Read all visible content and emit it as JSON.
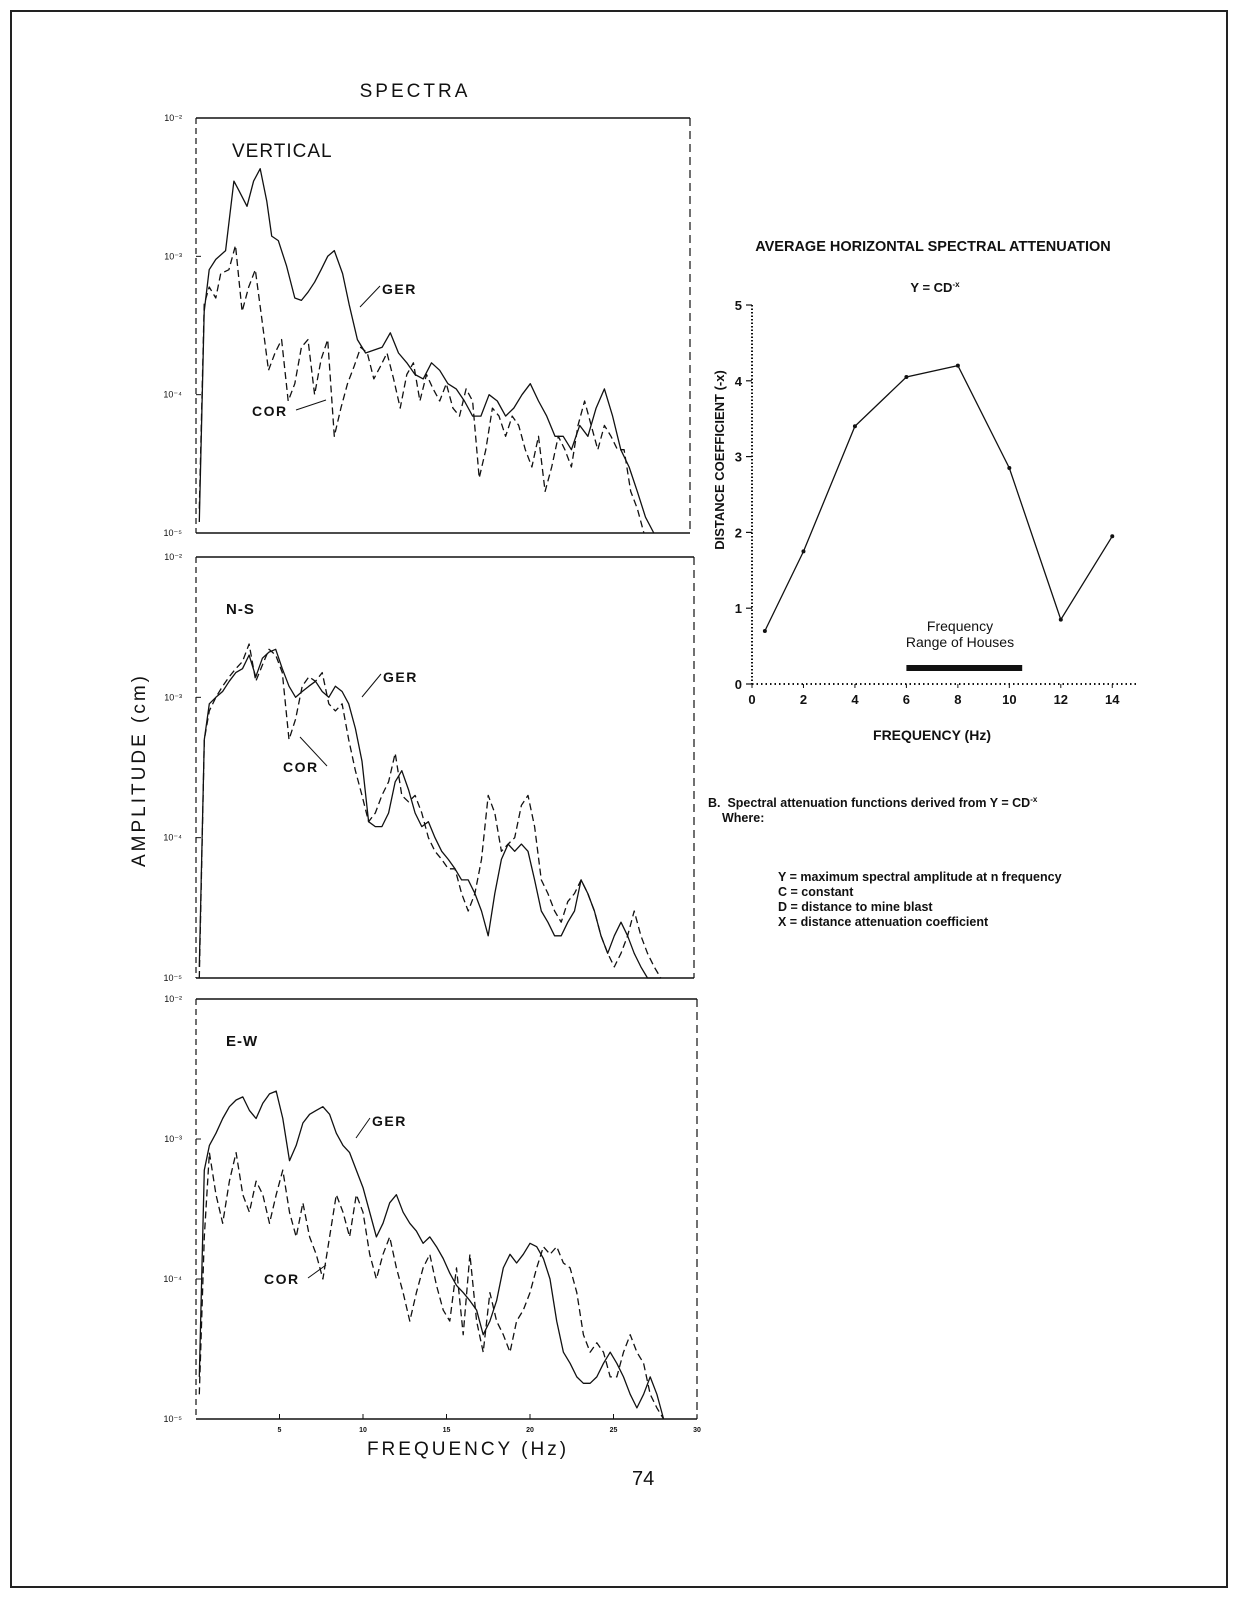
{
  "page": {
    "number": "74"
  },
  "left_figure": {
    "title": "SPECTRA",
    "y_axis_label": "AMPLITUDE (cm)",
    "x_axis_label": "FREQUENCY (Hz)"
  },
  "right_figure": {
    "title": "AVERAGE HORIZONTAL SPECTRAL ATTENUATION",
    "formula": "Y = CD",
    "formula_exp": "-x",
    "range_label_line1": "Frequency",
    "range_label_line2": "Range of Houses",
    "caption_prefix": "B.",
    "caption_text": "Spectral attenuation functions derived from Y = CD",
    "caption_exp": "-x",
    "caption_where": "Where:",
    "definitions": [
      "Y = maximum spectral amplitude at n frequency",
      "C = constant",
      "D = distance to mine blast",
      "X = distance attenuation coefficient"
    ]
  },
  "chart_data": [
    {
      "type": "line",
      "name": "VERTICAL",
      "log_y": true,
      "ylim": [
        1e-05,
        0.01
      ],
      "xlim": [
        0,
        30
      ],
      "ytick_labels": [
        "10⁻²",
        "10⁻³",
        "10⁻⁴",
        "10⁻⁵"
      ],
      "series": [
        {
          "name": "GER",
          "style": "solid",
          "x": [
            0.2,
            0.5,
            0.8,
            1.2,
            1.8,
            2.3,
            2.6,
            3.1,
            3.5,
            3.9,
            4.3,
            4.6,
            5.0,
            5.5,
            6.0,
            6.4,
            6.8,
            7.2,
            7.6,
            8.0,
            8.4,
            8.9,
            9.3,
            9.8,
            10.3,
            10.8,
            11.3,
            11.8,
            12.3,
            12.8,
            13.3,
            13.8,
            14.3,
            14.8,
            15.3,
            15.8,
            16.3,
            16.8,
            17.3,
            17.8,
            18.3,
            18.8,
            19.3,
            19.8,
            20.3,
            20.8,
            21.3,
            21.8,
            22.3,
            22.8,
            23.3,
            23.8,
            24.3,
            24.8,
            25.3,
            25.8,
            26.3,
            26.8,
            27.3,
            27.8
          ],
          "y": [
            1.2e-05,
            0.0004,
            0.0008,
            0.00095,
            0.0011,
            0.0035,
            0.003,
            0.0023,
            0.0035,
            0.0043,
            0.0025,
            0.0014,
            0.0013,
            0.00085,
            0.0005,
            0.00048,
            0.00055,
            0.00065,
            0.0008,
            0.001,
            0.0011,
            0.00075,
            0.00045,
            0.00025,
            0.0002,
            0.00021,
            0.00022,
            0.00028,
            0.0002,
            0.00017,
            0.00014,
            0.00013,
            0.00017,
            0.00015,
            0.00012,
            0.00011,
            9e-05,
            7e-05,
            7e-05,
            0.0001,
            9e-05,
            7e-05,
            8e-05,
            0.0001,
            0.00012,
            9e-05,
            7e-05,
            5e-05,
            5e-05,
            4e-05,
            6e-05,
            5e-05,
            8e-05,
            0.00011,
            7e-05,
            4e-05,
            3e-05,
            2e-05,
            1.3e-05,
            1e-05
          ]
        },
        {
          "name": "COR",
          "style": "dashed",
          "x": [
            0.2,
            0.5,
            0.8,
            1.2,
            1.5,
            2.0,
            2.4,
            2.8,
            3.2,
            3.6,
            4.0,
            4.4,
            4.8,
            5.2,
            5.6,
            6.0,
            6.4,
            6.8,
            7.2,
            7.6,
            8.0,
            8.4,
            8.8,
            9.2,
            9.6,
            10.0,
            10.4,
            10.8,
            11.2,
            11.6,
            12.0,
            12.4,
            12.8,
            13.2,
            13.6,
            14.0,
            14.4,
            14.8,
            15.2,
            15.6,
            16.0,
            16.4,
            16.8,
            17.2,
            17.6,
            18.0,
            18.4,
            18.8,
            19.2,
            19.6,
            20.0,
            20.4,
            20.8,
            21.2,
            21.6,
            22.0,
            22.4,
            22.8,
            23.2,
            23.6,
            24.0,
            24.4,
            24.8,
            25.2,
            25.6,
            26.0,
            26.4,
            26.8,
            27.2
          ],
          "y": [
            1.5e-05,
            0.00045,
            0.0006,
            0.0005,
            0.00075,
            0.0008,
            0.0012,
            0.0004,
            0.0006,
            0.0008,
            0.00035,
            0.00015,
            0.0002,
            0.00025,
            9e-05,
            0.00012,
            0.00022,
            0.00025,
            0.0001,
            0.00018,
            0.00025,
            5e-05,
            8e-05,
            0.00012,
            0.00016,
            0.00022,
            0.0002,
            0.00013,
            0.00016,
            0.0002,
            0.00013,
            8e-05,
            0.00014,
            0.00017,
            9e-05,
            0.00014,
            0.00011,
            9e-05,
            0.00012,
            8e-05,
            7e-05,
            0.00011,
            9e-05,
            2.5e-05,
            4e-05,
            8e-05,
            7e-05,
            5e-05,
            7e-05,
            6e-05,
            4e-05,
            3e-05,
            5e-05,
            2e-05,
            3e-05,
            5e-05,
            4e-05,
            3e-05,
            6e-05,
            9e-05,
            6e-05,
            4e-05,
            6e-05,
            5e-05,
            4e-05,
            4e-05,
            2e-05,
            1.5e-05,
            1e-05
          ]
        }
      ]
    },
    {
      "type": "line",
      "name": "N-S",
      "log_y": true,
      "ylim": [
        1e-05,
        0.01
      ],
      "xlim": [
        0,
        30
      ],
      "ytick_labels": [
        "10⁻²",
        "10⁻³",
        "10⁻⁴",
        "10⁻⁵"
      ],
      "series": [
        {
          "name": "GER",
          "style": "solid",
          "x": [
            0.2,
            0.5,
            0.8,
            1.2,
            1.6,
            2.0,
            2.4,
            2.8,
            3.2,
            3.6,
            4.0,
            4.4,
            4.8,
            5.2,
            5.6,
            6.0,
            6.4,
            6.8,
            7.2,
            7.6,
            8.0,
            8.4,
            8.8,
            9.2,
            9.6,
            10.0,
            10.4,
            10.8,
            11.2,
            11.6,
            12.0,
            12.4,
            12.8,
            13.2,
            13.6,
            14.0,
            14.4,
            14.8,
            15.2,
            15.6,
            16.0,
            16.4,
            16.8,
            17.2,
            17.6,
            18.0,
            18.4,
            18.8,
            19.2,
            19.6,
            20.0,
            20.4,
            20.8,
            21.2,
            21.6,
            22.0,
            22.4,
            22.8,
            23.2,
            23.6,
            24.0,
            24.4,
            24.8,
            25.2,
            25.6,
            26.0,
            26.4,
            26.8,
            27.2,
            27.6,
            28.0
          ],
          "y": [
            1.2e-05,
            0.0005,
            0.0009,
            0.001,
            0.0011,
            0.0013,
            0.0015,
            0.0016,
            0.002,
            0.0014,
            0.0019,
            0.0021,
            0.0022,
            0.0016,
            0.0012,
            0.001,
            0.0011,
            0.0012,
            0.0013,
            0.0011,
            0.001,
            0.0012,
            0.0011,
            0.0009,
            0.0006,
            0.00035,
            0.00013,
            0.00012,
            0.00012,
            0.00015,
            0.00025,
            0.0003,
            0.00022,
            0.00015,
            0.00012,
            0.00013,
            0.0001,
            8e-05,
            7e-05,
            6e-05,
            5e-05,
            5e-05,
            4e-05,
            3e-05,
            2e-05,
            4e-05,
            7e-05,
            9e-05,
            8e-05,
            9e-05,
            8e-05,
            5e-05,
            3e-05,
            2.5e-05,
            2e-05,
            2e-05,
            2.5e-05,
            3e-05,
            5e-05,
            4e-05,
            3e-05,
            2e-05,
            1.5e-05,
            2e-05,
            2.5e-05,
            2e-05,
            1.5e-05,
            1.2e-05,
            1e-05,
            1e-05,
            1e-05
          ]
        },
        {
          "name": "COR",
          "style": "dashed",
          "x": [
            0.2,
            0.5,
            0.8,
            1.2,
            1.6,
            2.0,
            2.4,
            2.8,
            3.2,
            3.6,
            4.0,
            4.4,
            4.8,
            5.2,
            5.6,
            6.0,
            6.4,
            6.8,
            7.2,
            7.6,
            8.0,
            8.4,
            8.8,
            9.2,
            9.6,
            10.0,
            10.4,
            10.8,
            11.2,
            11.6,
            12.0,
            12.4,
            12.8,
            13.2,
            13.6,
            14.0,
            14.4,
            14.8,
            15.2,
            15.6,
            16.0,
            16.4,
            16.8,
            17.2,
            17.6,
            18.0,
            18.4,
            18.8,
            19.2,
            19.6,
            20.0,
            20.4,
            20.8,
            21.2,
            21.6,
            22.0,
            22.4,
            22.8,
            23.2,
            23.6,
            24.0,
            24.4,
            24.8,
            25.2,
            25.6,
            26.0,
            26.4,
            26.8,
            27.2,
            27.6,
            28.0
          ],
          "y": [
            1e-05,
            0.0005,
            0.0008,
            0.001,
            0.0012,
            0.0014,
            0.0016,
            0.0018,
            0.0024,
            0.0013,
            0.0017,
            0.0022,
            0.002,
            0.0015,
            0.0005,
            0.0007,
            0.0012,
            0.0014,
            0.0013,
            0.0015,
            0.0009,
            0.0008,
            0.0009,
            0.0005,
            0.0003,
            0.0002,
            0.00013,
            0.00015,
            0.0002,
            0.00025,
            0.0004,
            0.0002,
            0.00018,
            0.0002,
            0.00015,
            0.0001,
            8e-05,
            7e-05,
            6e-05,
            6e-05,
            4e-05,
            3e-05,
            4e-05,
            7e-05,
            0.0002,
            0.00015,
            8e-05,
            9e-05,
            0.0001,
            0.00017,
            0.0002,
            0.00012,
            5e-05,
            4e-05,
            3e-05,
            2.5e-05,
            3.5e-05,
            4e-05,
            5e-05,
            4e-05,
            3e-05,
            2e-05,
            1.5e-05,
            1.2e-05,
            1.5e-05,
            2e-05,
            3e-05,
            2e-05,
            1.5e-05,
            1.2e-05,
            1e-05
          ]
        }
      ]
    },
    {
      "type": "line",
      "name": "E-W",
      "log_y": true,
      "ylim": [
        1e-05,
        0.01
      ],
      "xlim": [
        0,
        30
      ],
      "x_ticks": [
        5,
        10,
        15,
        20,
        25,
        30
      ],
      "ytick_labels": [
        "10⁻²",
        "10⁻³",
        "10⁻⁴",
        "10⁻⁵"
      ],
      "series": [
        {
          "name": "GER",
          "style": "solid",
          "x": [
            0.2,
            0.5,
            0.8,
            1.2,
            1.6,
            2.0,
            2.4,
            2.8,
            3.2,
            3.6,
            4.0,
            4.4,
            4.8,
            5.2,
            5.6,
            6.0,
            6.4,
            6.8,
            7.2,
            7.6,
            8.0,
            8.4,
            8.8,
            9.2,
            9.6,
            10.0,
            10.4,
            10.8,
            11.2,
            11.6,
            12.0,
            12.4,
            12.8,
            13.2,
            13.6,
            14.0,
            14.4,
            14.8,
            15.2,
            15.6,
            16.0,
            16.4,
            16.8,
            17.2,
            17.6,
            18.0,
            18.4,
            18.8,
            19.2,
            19.6,
            20.0,
            20.4,
            20.8,
            21.2,
            21.6,
            22.0,
            22.4,
            22.8,
            23.2,
            23.6,
            24.0,
            24.4,
            24.8,
            25.2,
            25.6,
            26.0,
            26.4,
            26.8,
            27.2,
            27.6,
            28.0
          ],
          "y": [
            2e-05,
            0.0006,
            0.0009,
            0.0011,
            0.0014,
            0.0017,
            0.0019,
            0.002,
            0.0016,
            0.0014,
            0.0018,
            0.0021,
            0.0022,
            0.0014,
            0.0007,
            0.0009,
            0.0013,
            0.0015,
            0.0016,
            0.0017,
            0.0015,
            0.0011,
            0.0009,
            0.0008,
            0.0006,
            0.00045,
            0.0003,
            0.0002,
            0.00025,
            0.00035,
            0.0004,
            0.0003,
            0.00025,
            0.00022,
            0.00018,
            0.0002,
            0.00017,
            0.00014,
            0.00011,
            9e-05,
            8e-05,
            7e-05,
            6e-05,
            4e-05,
            5e-05,
            7e-05,
            0.00012,
            0.00015,
            0.00013,
            0.00015,
            0.00018,
            0.00017,
            0.00014,
            0.0001,
            5e-05,
            3e-05,
            2.5e-05,
            2e-05,
            1.8e-05,
            1.8e-05,
            2e-05,
            2.5e-05,
            3e-05,
            2.5e-05,
            2e-05,
            1.5e-05,
            1.2e-05,
            1.5e-05,
            2e-05,
            1.5e-05,
            1e-05
          ]
        },
        {
          "name": "COR",
          "style": "dashed",
          "x": [
            0.2,
            0.5,
            0.8,
            1.2,
            1.6,
            2.0,
            2.4,
            2.8,
            3.2,
            3.6,
            4.0,
            4.4,
            4.8,
            5.2,
            5.6,
            6.0,
            6.4,
            6.8,
            7.2,
            7.6,
            8.0,
            8.4,
            8.8,
            9.2,
            9.6,
            10.0,
            10.4,
            10.8,
            11.2,
            11.6,
            12.0,
            12.4,
            12.8,
            13.2,
            13.6,
            14.0,
            14.4,
            14.8,
            15.2,
            15.6,
            16.0,
            16.4,
            16.8,
            17.2,
            17.6,
            18.0,
            18.4,
            18.8,
            19.2,
            19.6,
            20.0,
            20.4,
            20.8,
            21.2,
            21.6,
            22.0,
            22.4,
            22.8,
            23.2,
            23.6,
            24.0,
            24.4,
            24.8,
            25.2,
            25.6,
            26.0,
            26.4,
            26.8,
            27.2,
            27.6,
            28.0
          ],
          "y": [
            1.5e-05,
            0.0002,
            0.0008,
            0.0004,
            0.00025,
            0.0005,
            0.0008,
            0.0004,
            0.0003,
            0.0005,
            0.0004,
            0.00025,
            0.0004,
            0.0006,
            0.0003,
            0.0002,
            0.00035,
            0.0002,
            0.00015,
            0.0001,
            0.0002,
            0.0004,
            0.0003,
            0.0002,
            0.0004,
            0.0003,
            0.00015,
            0.0001,
            0.00015,
            0.0002,
            0.00012,
            8e-05,
            5e-05,
            8e-05,
            0.00012,
            0.00015,
            9e-05,
            6e-05,
            5e-05,
            0.00012,
            4e-05,
            0.00015,
            5e-05,
            3e-05,
            8e-05,
            5e-05,
            4e-05,
            3e-05,
            5e-05,
            6e-05,
            8e-05,
            0.00012,
            0.00017,
            0.00015,
            0.00017,
            0.00013,
            0.00012,
            8e-05,
            4e-05,
            3e-05,
            3.5e-05,
            3e-05,
            2e-05,
            2e-05,
            3e-05,
            4e-05,
            3e-05,
            2.5e-05,
            1.5e-05,
            1.2e-05,
            1e-05
          ]
        }
      ]
    },
    {
      "type": "line",
      "name": "attenuation",
      "xlabel": "FREQUENCY (Hz)",
      "ylabel": "DISTANCE COEFFICIENT (-x)",
      "xlim": [
        0,
        15
      ],
      "ylim": [
        0,
        5
      ],
      "x_ticks": [
        0,
        2,
        4,
        6,
        8,
        10,
        12,
        14
      ],
      "y_ticks": [
        0,
        1,
        2,
        3,
        4,
        5
      ],
      "x": [
        0.5,
        2,
        4,
        6,
        8,
        10,
        12,
        14
      ],
      "y": [
        0.7,
        1.75,
        3.4,
        4.05,
        4.2,
        2.85,
        0.85,
        1.95
      ],
      "frequency_range_of_houses": [
        6,
        10.5
      ]
    }
  ]
}
